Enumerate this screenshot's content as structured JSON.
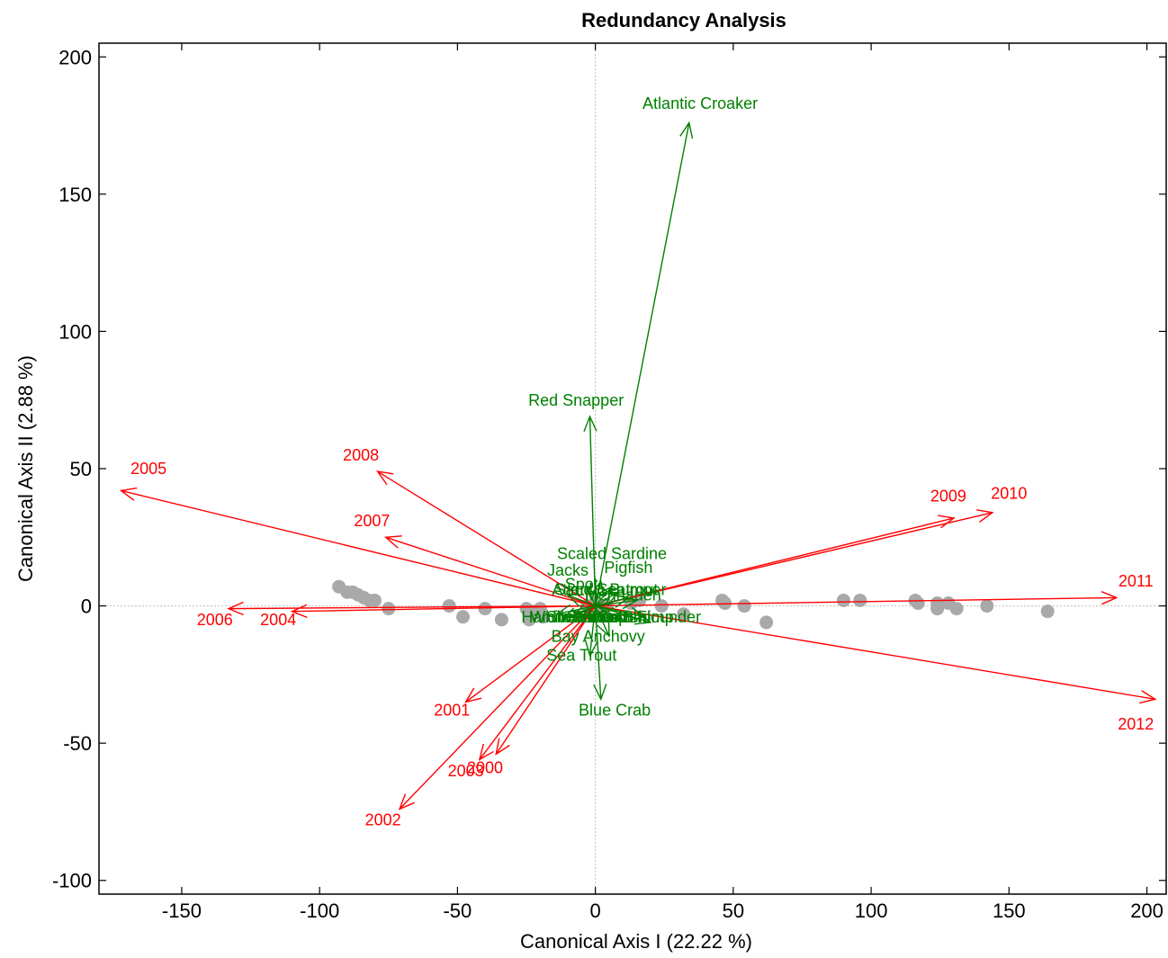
{
  "chart_data": {
    "type": "scatter",
    "title": "Redundancy Analysis",
    "xlabel": "Canonical Axis I (22.22 %)",
    "ylabel": "Canonical Axis II (2.88 %)",
    "xlim": [
      -180,
      207
    ],
    "ylim": [
      -105,
      205
    ],
    "xticks": [
      -150,
      -100,
      -50,
      0,
      50,
      100,
      150,
      200
    ],
    "yticks": [
      -100,
      -50,
      0,
      50,
      100,
      150,
      200
    ],
    "grid": false,
    "zero_lines": true,
    "colors": {
      "years": "#ff0000",
      "species": "#008000",
      "points": "#a9a9a9",
      "zero_line": "#bfbfbf"
    },
    "year_vectors": [
      {
        "label": "2005",
        "x": -172,
        "y": 42,
        "lx": -162,
        "ly": 48
      },
      {
        "label": "2008",
        "x": -79,
        "y": 49,
        "lx": -85,
        "ly": 53
      },
      {
        "label": "2007",
        "x": -76,
        "y": 25,
        "lx": -81,
        "ly": 29
      },
      {
        "label": "2006",
        "x": -133,
        "y": -1,
        "lx": -138,
        "ly": -7
      },
      {
        "label": "2004",
        "x": -110,
        "y": -2,
        "lx": -115,
        "ly": -7
      },
      {
        "label": "2009",
        "x": 130,
        "y": 32,
        "lx": 128,
        "ly": 38
      },
      {
        "label": "2010",
        "x": 144,
        "y": 34,
        "lx": 150,
        "ly": 39
      },
      {
        "label": "2011",
        "x": 189,
        "y": 3,
        "lx": 196,
        "ly": 7
      },
      {
        "label": "2012",
        "x": 203,
        "y": -34,
        "lx": 196,
        "ly": -45
      },
      {
        "label": "2001",
        "x": -47,
        "y": -35,
        "lx": -52,
        "ly": -40
      },
      {
        "label": "2003",
        "x": -42,
        "y": -56,
        "lx": -47,
        "ly": -62
      },
      {
        "label": "2000",
        "x": -36,
        "y": -54,
        "lx": -40,
        "ly": -61
      },
      {
        "label": "2002",
        "x": -71,
        "y": -74,
        "lx": -77,
        "ly": -80
      }
    ],
    "species_vectors": [
      {
        "label": "Atlantic Croaker",
        "x": 34,
        "y": 176,
        "lx": 38,
        "ly": 181
      },
      {
        "label": "Red Snapper",
        "x": -2,
        "y": 69,
        "lx": -7,
        "ly": 73
      },
      {
        "label": "Blue Crab",
        "x": 2,
        "y": -34,
        "lx": 7,
        "ly": -40
      },
      {
        "label": "Bay Anchovy",
        "x": 5,
        "y": -11,
        "lx": 1,
        "ly": -13
      },
      {
        "label": "Sea Trout",
        "x": -2,
        "y": -18,
        "lx": -5,
        "ly": -20
      },
      {
        "label": "Scaled Sardine",
        "x": 2,
        "y": 9,
        "lx": 6,
        "ly": 17
      },
      {
        "label": "Jacks",
        "x": -3,
        "y": 7,
        "lx": -10,
        "ly": 11
      },
      {
        "label": "Pigfish",
        "x": 6,
        "y": 7,
        "lx": 12,
        "ly": 12
      },
      {
        "label": "Sand Seatrout",
        "x": 8,
        "y": 5,
        "lx": 4,
        "ly": 4
      },
      {
        "label": "Atlantic Bumper",
        "x": 12,
        "y": 3,
        "lx": 5,
        "ly": 4
      },
      {
        "label": "Menhaden",
        "x": 15,
        "y": 2,
        "lx": 10,
        "ly": 2
      },
      {
        "label": "Spot",
        "x": -10,
        "y": 4,
        "lx": -5,
        "ly": 6
      },
      {
        "label": "Silver Perch",
        "x": -8,
        "y": -4,
        "lx": -2,
        "ly": -6
      },
      {
        "label": "Pinfish",
        "x": 10,
        "y": -5,
        "lx": 3,
        "ly": -6
      },
      {
        "label": "Hardhead Catfish",
        "x": -12,
        "y": -5,
        "lx": -4,
        "ly": -6
      },
      {
        "label": "Brown Shrimp",
        "x": 18,
        "y": -4,
        "lx": 10,
        "ly": -6
      },
      {
        "label": "White Shrimp",
        "x": -14,
        "y": -3,
        "lx": -6,
        "ly": -6
      },
      {
        "label": "Southern Flounder",
        "x": 20,
        "y": -6,
        "lx": 14,
        "ly": -6
      }
    ],
    "points": [
      [
        -93,
        7
      ],
      [
        -90,
        5
      ],
      [
        -88,
        5
      ],
      [
        -86,
        4
      ],
      [
        -84,
        3
      ],
      [
        -82,
        2
      ],
      [
        -80,
        2
      ],
      [
        -75,
        -1
      ],
      [
        -53,
        0
      ],
      [
        -48,
        -4
      ],
      [
        -40,
        -1
      ],
      [
        -34,
        -5
      ],
      [
        -25,
        -1
      ],
      [
        -24,
        -3
      ],
      [
        -24,
        -5
      ],
      [
        -22,
        -2
      ],
      [
        -20,
        -1
      ],
      [
        -19,
        -4
      ],
      [
        -3,
        0
      ],
      [
        0,
        1
      ],
      [
        2,
        -1
      ],
      [
        4,
        0
      ],
      [
        13,
        1
      ],
      [
        16,
        2
      ],
      [
        24,
        0
      ],
      [
        32,
        -3
      ],
      [
        46,
        2
      ],
      [
        47,
        1
      ],
      [
        54,
        0
      ],
      [
        62,
        -6
      ],
      [
        90,
        2
      ],
      [
        96,
        2
      ],
      [
        116,
        2
      ],
      [
        117,
        1
      ],
      [
        124,
        1
      ],
      [
        124,
        -1
      ],
      [
        128,
        1
      ],
      [
        131,
        -1
      ],
      [
        142,
        0
      ],
      [
        164,
        -2
      ]
    ]
  }
}
